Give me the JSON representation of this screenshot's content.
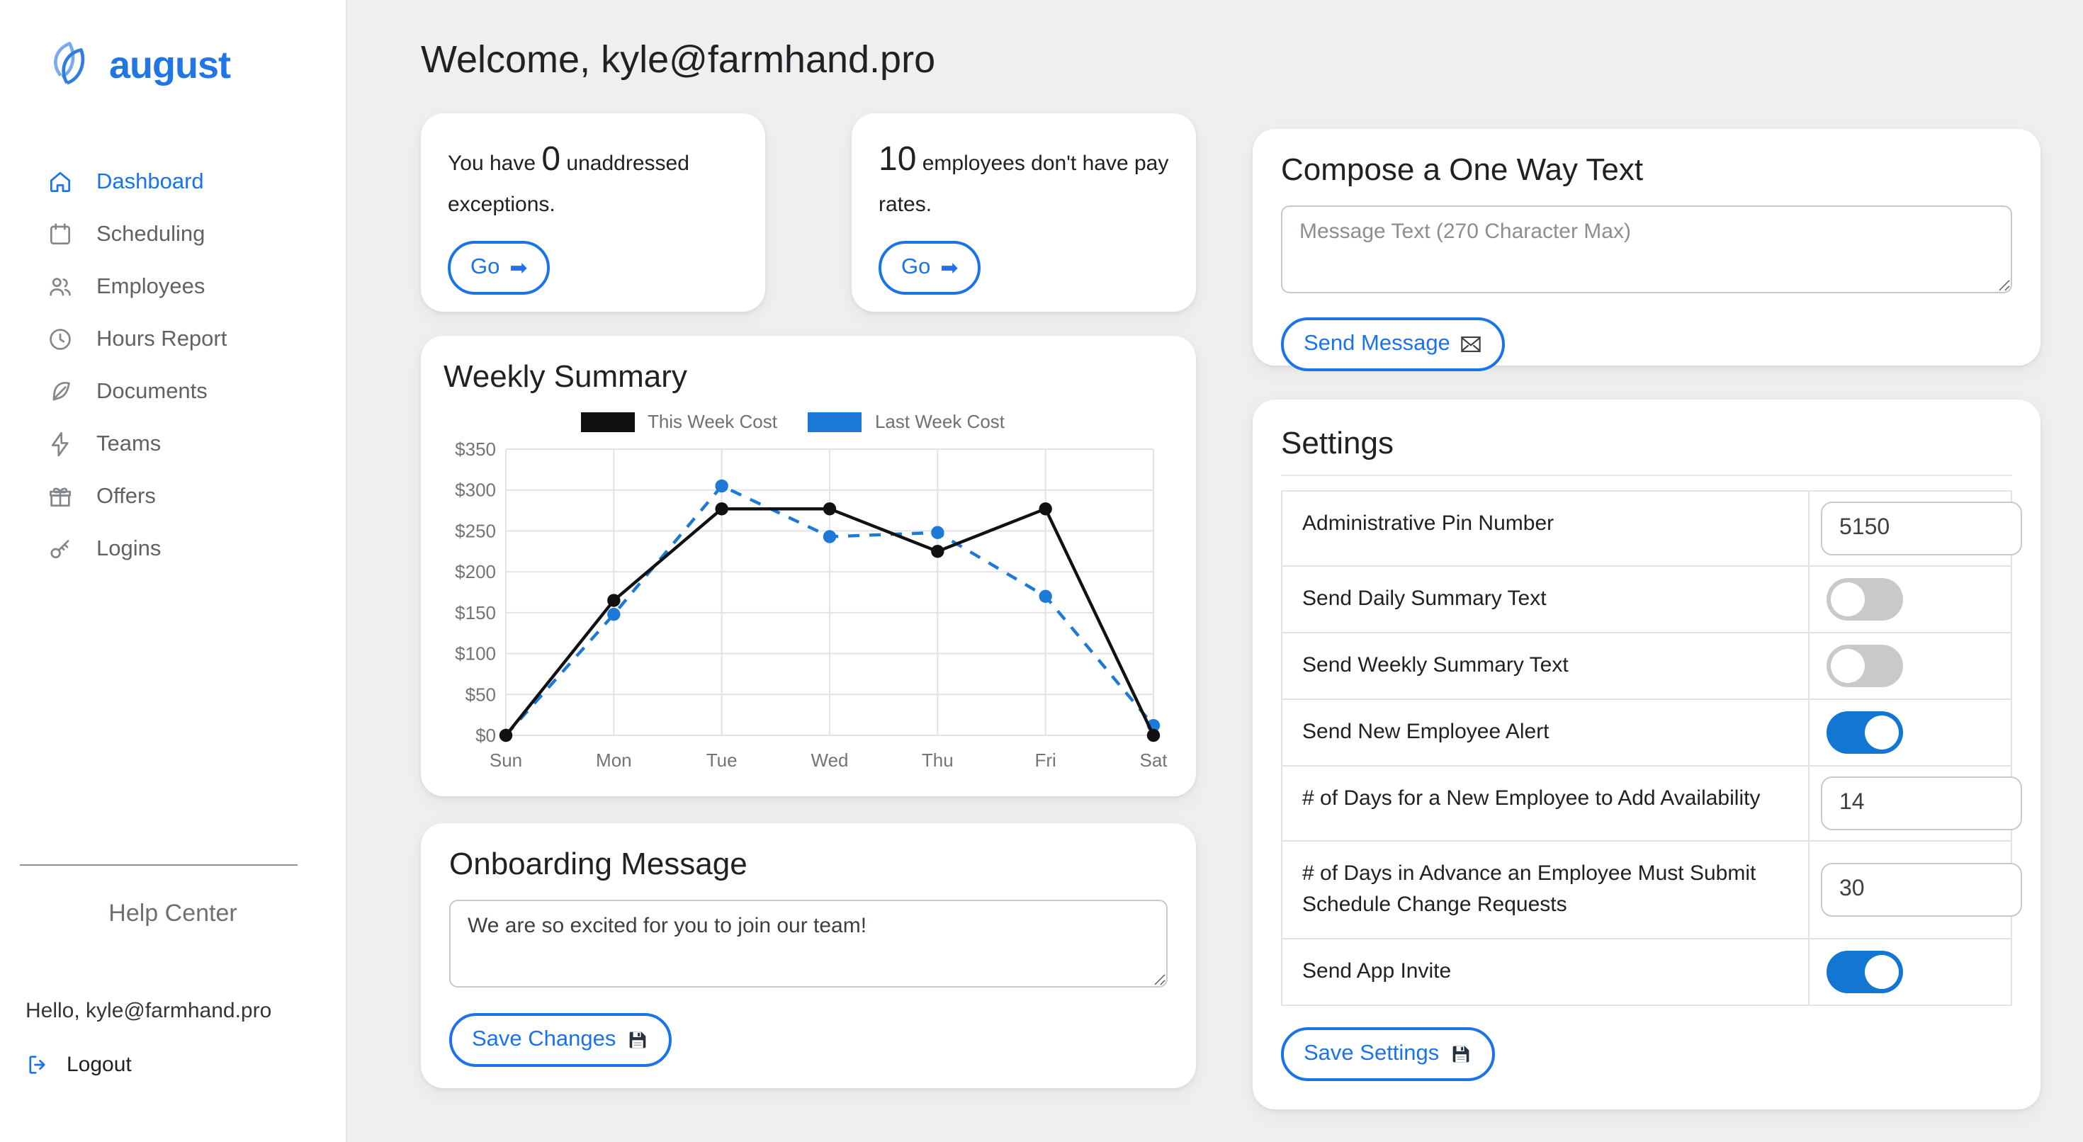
{
  "app": {
    "name": "august"
  },
  "colors": {
    "accent": "#1a73e8",
    "chart_black": "#111111",
    "chart_blue": "#1d79d8",
    "toggle_on": "#1277d2",
    "toggle_off": "#c9c9c9"
  },
  "icons": {
    "go_arrow": "➡"
  },
  "sidebar": {
    "items": [
      {
        "label": "Dashboard",
        "icon": "home-icon",
        "active": true
      },
      {
        "label": "Scheduling",
        "icon": "calendar-icon",
        "active": false
      },
      {
        "label": "Employees",
        "icon": "users-icon",
        "active": false
      },
      {
        "label": "Hours Report",
        "icon": "clock-icon",
        "active": false
      },
      {
        "label": "Documents",
        "icon": "feather-icon",
        "active": false
      },
      {
        "label": "Teams",
        "icon": "zap-icon",
        "active": false
      },
      {
        "label": "Offers",
        "icon": "gift-icon",
        "active": false
      },
      {
        "label": "Logins",
        "icon": "key-icon",
        "active": false
      }
    ],
    "help_center": "Help Center",
    "greeting": "Hello, kyle@farmhand.pro",
    "logout_label": "Logout"
  },
  "header": {
    "welcome": "Welcome, kyle@farmhand.pro"
  },
  "stat_cards": [
    {
      "text_before": "You have ",
      "count": "0",
      "text_after": " unaddressed exceptions.",
      "button_label": "Go"
    },
    {
      "text_before": "",
      "count": "10",
      "text_after": " employees don't have pay rates.",
      "button_label": "Go"
    }
  ],
  "weekly": {
    "title": "Weekly Summary"
  },
  "chart_data": {
    "type": "line",
    "title": "Weekly Summary",
    "categories": [
      "Sun",
      "Mon",
      "Tue",
      "Wed",
      "Thu",
      "Fri",
      "Sat"
    ],
    "series": [
      {
        "name": "This Week Cost",
        "values": [
          0,
          165,
          277,
          277,
          225,
          277,
          0
        ],
        "color": "#111111",
        "style": "solid"
      },
      {
        "name": "Last Week Cost",
        "values": [
          0,
          148,
          305,
          243,
          248,
          170,
          12
        ],
        "color": "#1d79d8",
        "style": "dashed"
      }
    ],
    "ylim": [
      0,
      350
    ],
    "ytick_step": 50,
    "ytick_prefix": "$",
    "grid": true,
    "legend_position": "top"
  },
  "onboarding": {
    "title": "Onboarding Message",
    "message": "We are so excited for you to join our team!",
    "save_label": "Save Changes"
  },
  "compose": {
    "title": "Compose a One Way Text",
    "placeholder": "Message Text (270 Character Max)",
    "send_label": "Send Message"
  },
  "settings": {
    "title": "Settings",
    "rows": [
      {
        "label": "Administrative Pin Number",
        "type": "input",
        "value": "5150"
      },
      {
        "label": "Send Daily Summary Text",
        "type": "toggle",
        "on": false
      },
      {
        "label": "Send Weekly Summary Text",
        "type": "toggle",
        "on": false
      },
      {
        "label": "Send New Employee Alert",
        "type": "toggle",
        "on": true
      },
      {
        "label": "# of Days for a New Employee to Add Availability",
        "type": "input",
        "value": "14"
      },
      {
        "label": "# of Days in Advance an Employee Must Submit Schedule Change Requests",
        "type": "input",
        "value": "30"
      },
      {
        "label": "Send App Invite",
        "type": "toggle",
        "on": true
      }
    ],
    "save_label": "Save Settings"
  }
}
